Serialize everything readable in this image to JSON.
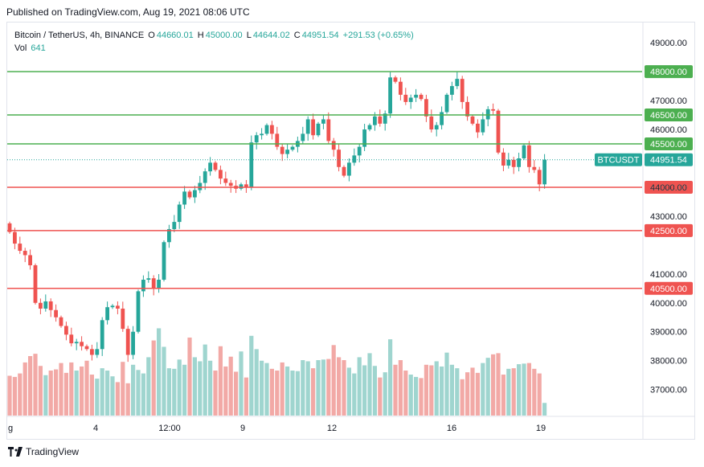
{
  "header": {
    "published": "Published on TradingView.com, Aug 19, 2021 08:06 UTC"
  },
  "legend": {
    "symbol": "Bitcoin / TetherUS, 4h, BINANCE",
    "o_label": "O",
    "o_value": "44660.01",
    "h_label": "H",
    "h_value": "45000.00",
    "l_label": "L",
    "l_value": "44644.02",
    "c_label": "C",
    "c_value": "44951.54",
    "change": "+291.53 (+0.65%)",
    "vol_label": "Vol",
    "vol_value": "641"
  },
  "footer": {
    "brand": "TradingView"
  },
  "colors": {
    "up": "#26a69a",
    "down": "#ef5350",
    "support": "#ef5350",
    "resistance": "#4caf50"
  },
  "chart_data": {
    "type": "candlestick",
    "symbol": "BTCUSDT",
    "timeframe": "4h",
    "ylim": [
      36100,
      49700
    ],
    "y_ticks": [
      37000,
      38000,
      39000,
      40000,
      41000,
      43000,
      44000,
      46000,
      47000,
      49000
    ],
    "x_ticks": [
      "g",
      "4",
      "12:00",
      "9",
      "12",
      "16",
      "19"
    ],
    "horizontal_lines": [
      {
        "label": "48000.00",
        "value": 48000,
        "color": "#4caf50"
      },
      {
        "label": "46500.00",
        "value": 46500,
        "color": "#4caf50"
      },
      {
        "label": "45500.00",
        "value": 45500,
        "color": "#4caf50"
      },
      {
        "label": "44000.00",
        "value": 44000,
        "color": "#ef5350"
      },
      {
        "label": "42500.00",
        "value": 42500,
        "color": "#ef5350"
      },
      {
        "label": "40500.00",
        "value": 40500,
        "color": "#ef5350"
      }
    ],
    "last_price": {
      "symbol_label": "BTCUSDT",
      "price_label": "44951.54",
      "value": 44951.54
    },
    "closes": [
      42450,
      42050,
      41800,
      41650,
      41300,
      40000,
      39800,
      40050,
      39750,
      39500,
      39200,
      38900,
      38600,
      38650,
      38500,
      38400,
      38200,
      38400,
      39400,
      39850,
      39900,
      39800,
      39100,
      38200,
      39000,
      40400,
      40800,
      40850,
      40500,
      40800,
      42100,
      42550,
      42800,
      43400,
      43850,
      43650,
      43900,
      44150,
      44550,
      44850,
      44600,
      44300,
      44150,
      44050,
      43950,
      44100,
      44000,
      45550,
      45800,
      45850,
      46150,
      45850,
      45400,
      45150,
      45300,
      45400,
      45600,
      45850,
      46350,
      45800,
      46200,
      46350,
      45600,
      45300,
      44700,
      44400,
      44850,
      45100,
      45400,
      46000,
      46150,
      46450,
      46200,
      46550,
      47800,
      47650,
      47200,
      46950,
      47100,
      47200,
      47050,
      46450,
      46000,
      46150,
      46600,
      47200,
      47500,
      47750,
      46950,
      46450,
      46200,
      45900,
      46350,
      46700,
      46650,
      45200,
      44750,
      44950,
      44700,
      45000,
      45450,
      44700,
      44600,
      44100,
      44951.54
    ],
    "volumes": [
      1110,
      1090,
      1150,
      1340,
      1450,
      1490,
      1280,
      1120,
      1200,
      1220,
      1330,
      1160,
      1340,
      1200,
      1270,
      1370,
      1130,
      1060,
      1240,
      1200,
      1100,
      1000,
      1350,
      980,
      1300,
      1210,
      1150,
      1430,
      1720,
      1930,
      1610,
      1240,
      1230,
      1390,
      1300,
      1770,
      1430,
      1360,
      1650,
      1370,
      1200,
      1620,
      1270,
      1440,
      1180,
      1530,
      1080,
      1800,
      1570,
      1370,
      1330,
      1230,
      1200,
      1340,
      1270,
      1200,
      1190,
      1380,
      1360,
      1240,
      1380,
      1390,
      1400,
      1640,
      1430,
      1380,
      1250,
      1150,
      1430,
      1290,
      1500,
      1280,
      1080,
      1170,
      1740,
      1300,
      1380,
      1200,
      1130,
      1090,
      1070,
      1300,
      1290,
      1360,
      1270,
      1510,
      1300,
      1240,
      1050,
      1170,
      1250,
      1160,
      1330,
      1420,
      1480,
      1500,
      1130,
      1230,
      1240,
      1310,
      1320,
      1330,
      1230,
      1150,
      641
    ]
  }
}
